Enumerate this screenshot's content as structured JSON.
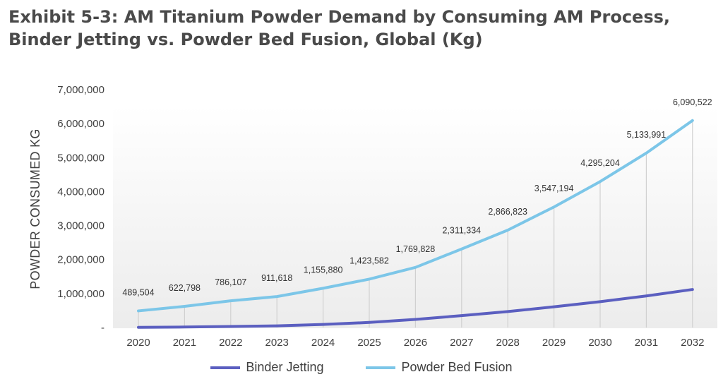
{
  "title": {
    "line1": "Exhibit 5-3: AM Titanium Powder Demand by Consuming AM Process,",
    "line2": "Binder Jetting vs. Powder Bed Fusion, Global (Kg)"
  },
  "colors": {
    "binder_jetting": "#5b5fc0",
    "powder_bed_fusion": "#7cc6e8",
    "droplines": "#d0d0d0"
  },
  "chart_data": {
    "type": "line",
    "title": "Exhibit 5-3: AM Titanium Powder Demand by Consuming AM Process, Binder Jetting vs. Powder Bed Fusion, Global (Kg)",
    "xlabel": "",
    "ylabel": "POWDER CONSUMED KG",
    "categories": [
      "2020",
      "2021",
      "2022",
      "2023",
      "2024",
      "2025",
      "2026",
      "2027",
      "2028",
      "2029",
      "2030",
      "2031",
      "2032"
    ],
    "ylim": [
      0,
      7000000
    ],
    "yticks": [
      0,
      1000000,
      2000000,
      3000000,
      4000000,
      5000000,
      6000000,
      7000000
    ],
    "ytick_labels": [
      "-",
      "1,000,000",
      "2,000,000",
      "3,000,000",
      "4,000,000",
      "5,000,000",
      "6,000,000",
      "7,000,000"
    ],
    "series": [
      {
        "name": "Binder Jetting",
        "values": [
          5000,
          15000,
          30000,
          50000,
          90000,
          150000,
          240000,
          350000,
          470000,
          610000,
          760000,
          930000,
          1120000
        ],
        "labels": []
      },
      {
        "name": "Powder Bed Fusion",
        "values": [
          489504,
          622798,
          786107,
          911618,
          1155880,
          1423582,
          1769828,
          2311334,
          2866823,
          3547194,
          4295204,
          5133991,
          6090522
        ],
        "labels": [
          "489,504",
          "622,798",
          "786,107",
          "911,618",
          "1,155,880",
          "1,423,582",
          "1,769,828",
          "2,311,334",
          "2,866,823",
          "3,547,194",
          "4,295,204",
          "5,133,991",
          "6,090,522"
        ]
      }
    ],
    "grid": false,
    "legend": "bottom-center"
  }
}
